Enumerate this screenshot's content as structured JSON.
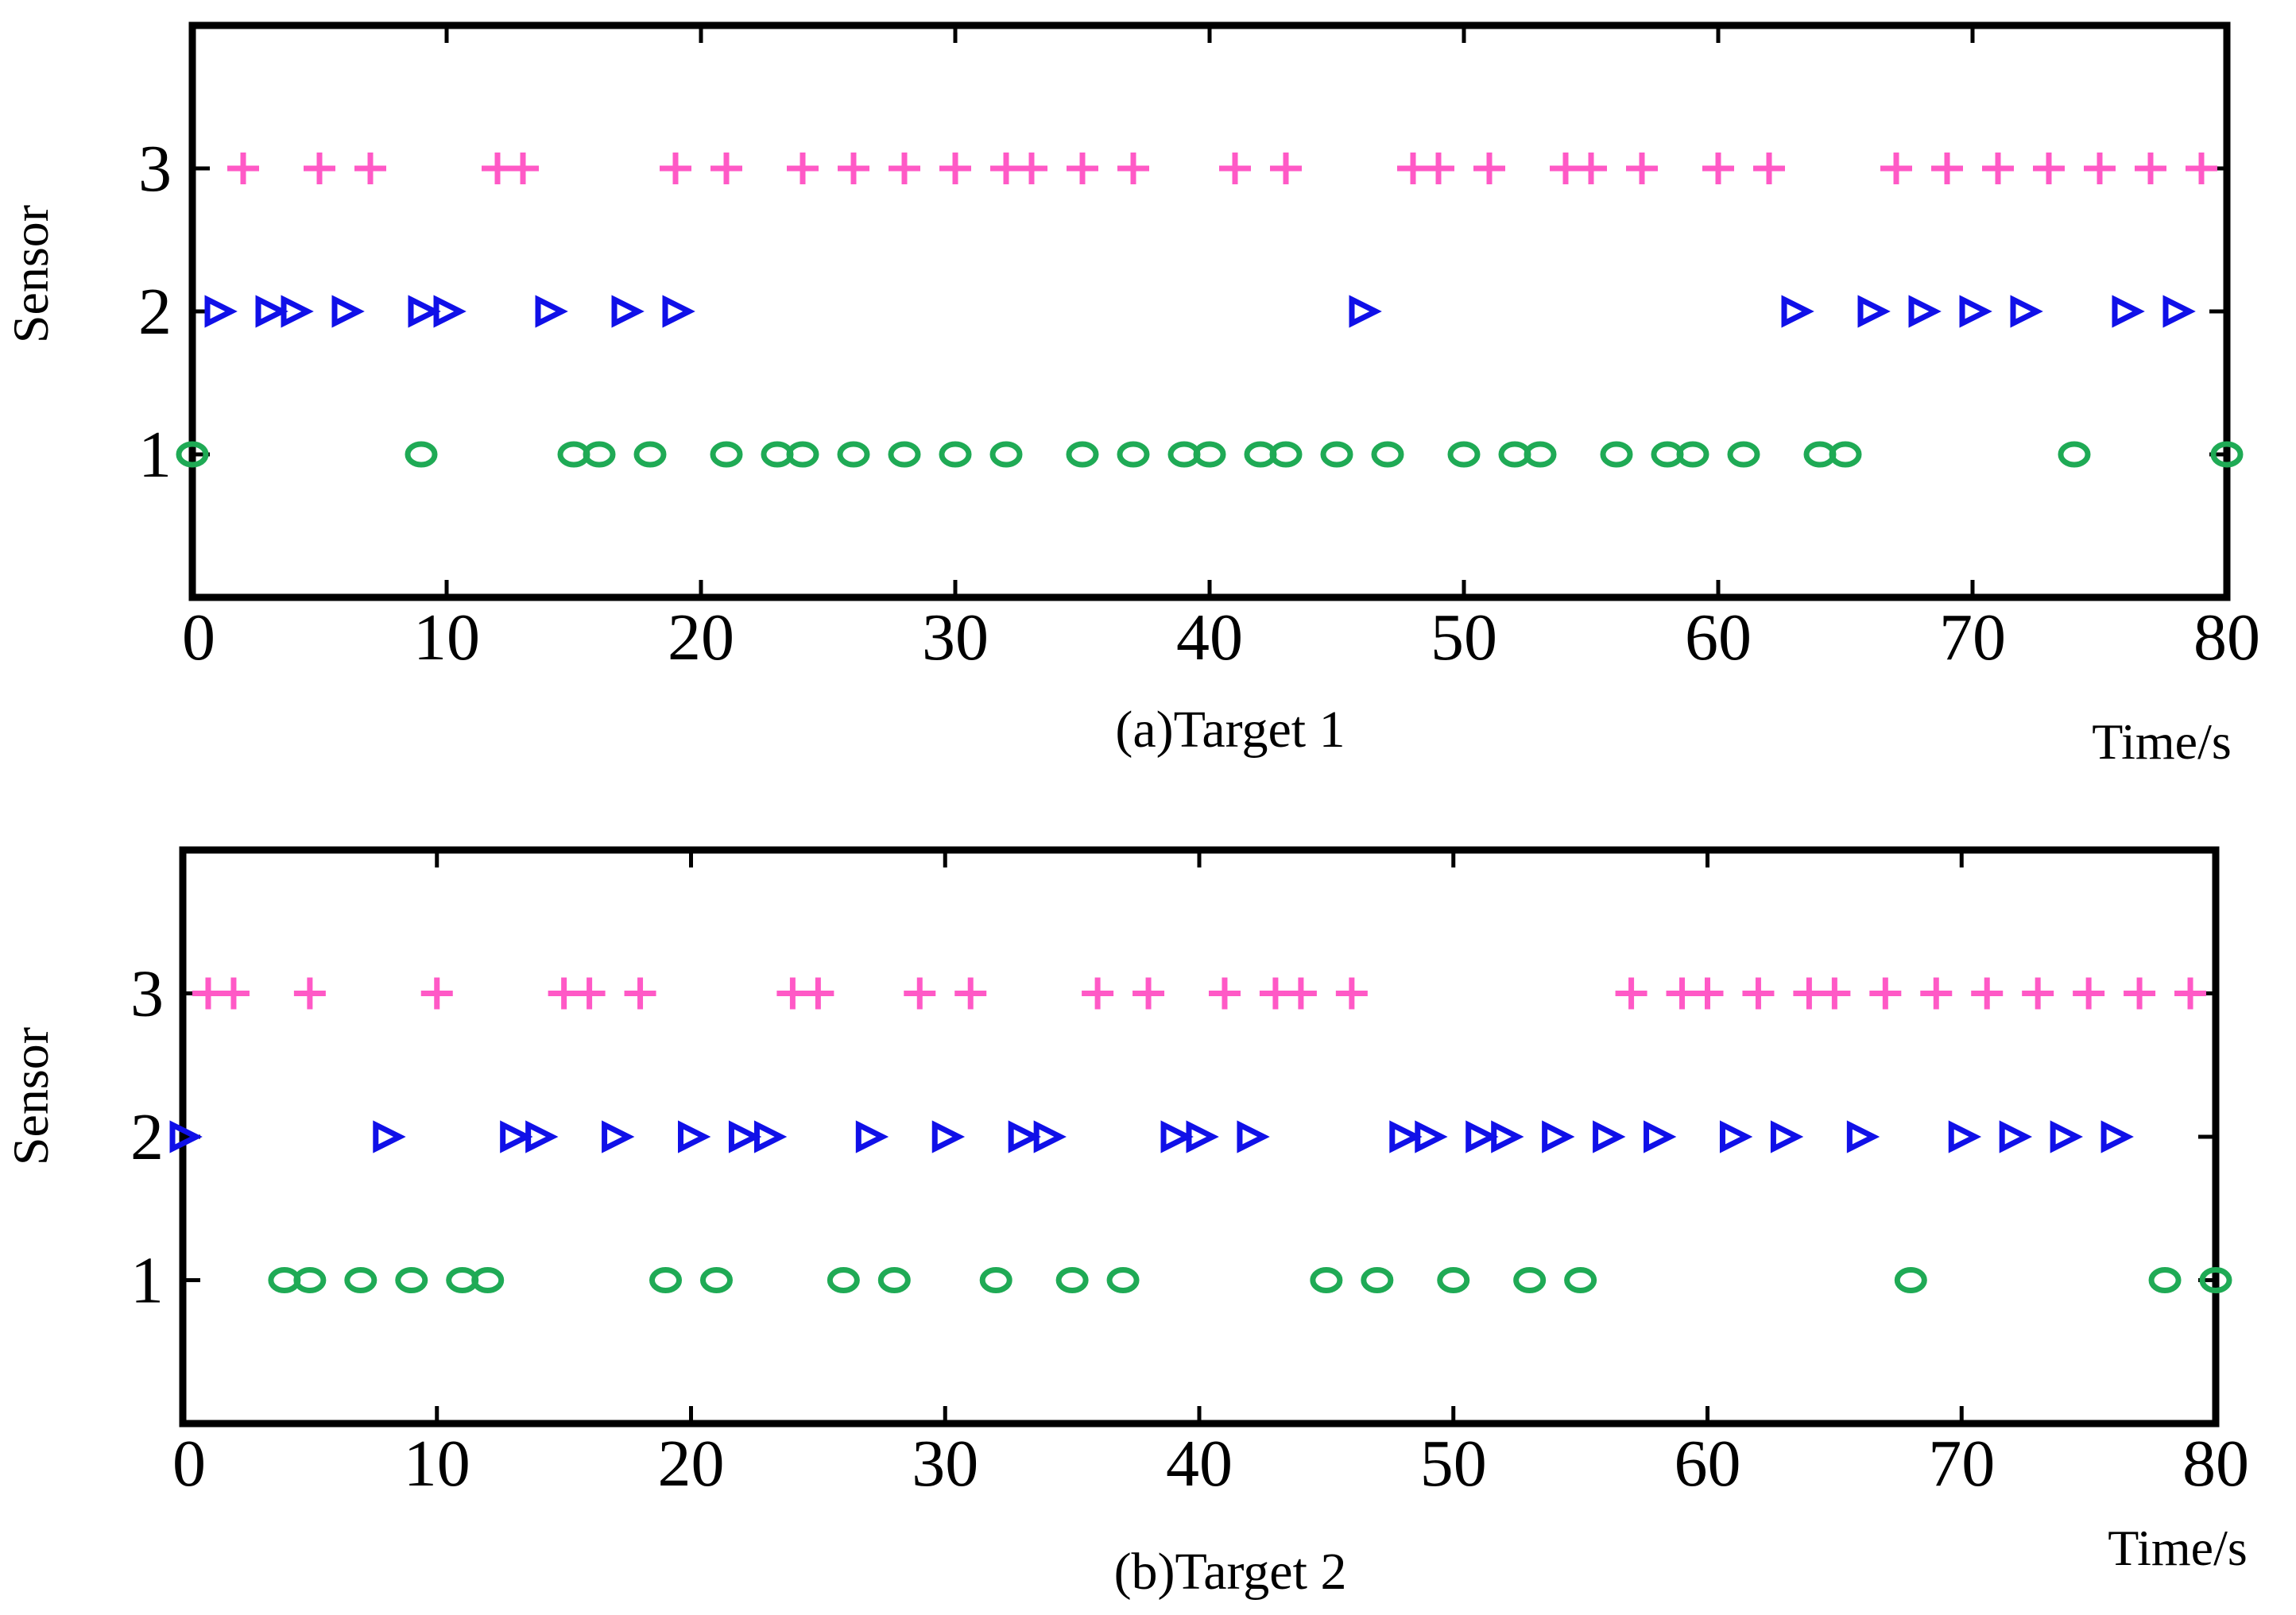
{
  "colors": {
    "sensor1": "#1faa55",
    "sensor2": "#1010e8",
    "sensor3": "#ff59c6",
    "axis": "#000000"
  },
  "chart_data": [
    {
      "type": "scatter",
      "caption": "(a)Target 1",
      "xlabel": "Time/s",
      "ylabel": "Sensor",
      "xlim": [
        0,
        80
      ],
      "ylim": [
        0,
        4
      ],
      "xticks": [
        0,
        10,
        20,
        30,
        40,
        50,
        60,
        70,
        80
      ],
      "yticks": [
        1,
        2,
        3
      ],
      "series": [
        {
          "name": "Sensor 1",
          "y": 1,
          "marker": "circle",
          "x": [
            0,
            9,
            15,
            16,
            18,
            21,
            23,
            24,
            26,
            28,
            30,
            32,
            35,
            37,
            39,
            40,
            42,
            43,
            45,
            47,
            50,
            52,
            53,
            56,
            58,
            59,
            61,
            64,
            65,
            74,
            80
          ]
        },
        {
          "name": "Sensor 2",
          "y": 2,
          "marker": "triangle-right",
          "x": [
            1,
            3,
            4,
            6,
            9,
            10,
            14,
            17,
            19,
            46,
            63,
            66,
            68,
            70,
            72,
            76,
            78
          ]
        },
        {
          "name": "Sensor 3",
          "y": 3,
          "marker": "plus",
          "x": [
            2,
            5,
            7,
            12,
            13,
            19,
            21,
            24,
            26,
            28,
            30,
            32,
            33,
            35,
            37,
            41,
            43,
            48,
            49,
            51,
            54,
            55,
            57,
            60,
            62,
            67,
            69,
            71,
            73,
            75,
            77,
            79
          ]
        }
      ]
    },
    {
      "type": "scatter",
      "caption": "(b)Target 2",
      "xlabel": "Time/s",
      "ylabel": "Sensor",
      "xlim": [
        0,
        80
      ],
      "ylim": [
        0,
        4
      ],
      "xticks": [
        0,
        10,
        20,
        30,
        40,
        50,
        60,
        70,
        80
      ],
      "yticks": [
        1,
        2,
        3
      ],
      "series": [
        {
          "name": "Sensor 1",
          "y": 1,
          "marker": "circle",
          "x": [
            4,
            5,
            7,
            9,
            11,
            12,
            19,
            21,
            26,
            28,
            32,
            35,
            37,
            45,
            47,
            50,
            53,
            55,
            68,
            78,
            80
          ]
        },
        {
          "name": "Sensor 2",
          "y": 2,
          "marker": "triangle-right",
          "x": [
            0,
            8,
            13,
            14,
            17,
            20,
            22,
            23,
            27,
            30,
            33,
            34,
            39,
            40,
            42,
            48,
            49,
            51,
            52,
            54,
            56,
            58,
            61,
            63,
            66,
            70,
            72,
            74,
            76
          ]
        },
        {
          "name": "Sensor 3",
          "y": 3,
          "marker": "plus",
          "x": [
            1,
            2,
            5,
            10,
            15,
            16,
            18,
            24,
            25,
            29,
            31,
            36,
            38,
            41,
            43,
            44,
            46,
            57,
            59,
            60,
            62,
            64,
            65,
            67,
            69,
            71,
            73,
            75,
            77,
            79
          ]
        }
      ]
    }
  ]
}
